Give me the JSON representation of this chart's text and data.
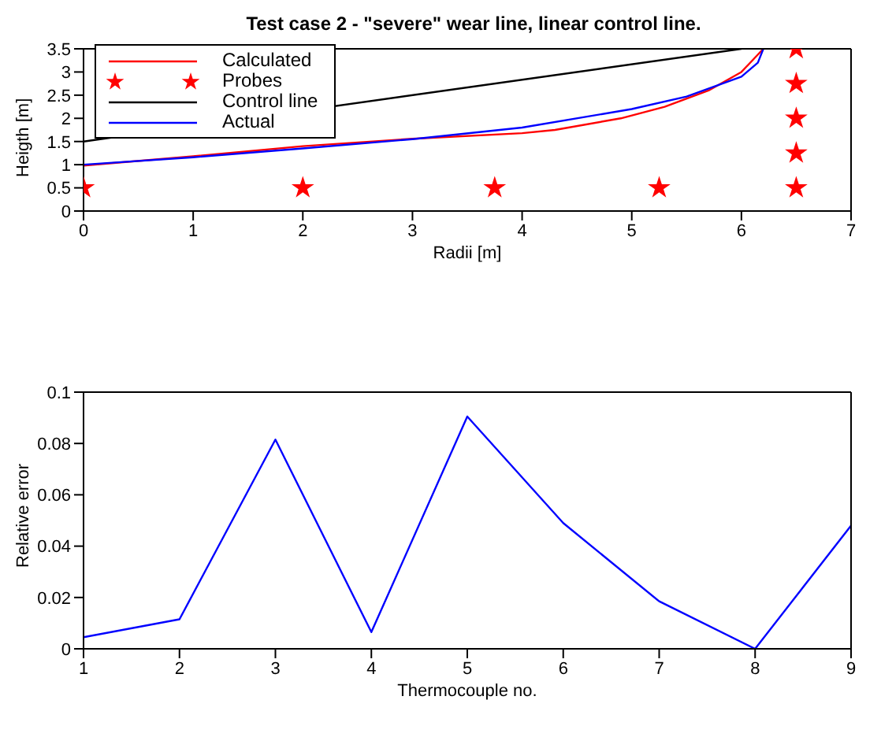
{
  "chart_data": [
    {
      "type": "line",
      "title": "Test case 2 - \"severe\" wear line, linear control line.",
      "xlabel": "Radii [m]",
      "ylabel": "Heigth [m]",
      "xlim": [
        0,
        7
      ],
      "xticks": [
        0,
        1,
        2,
        3,
        4,
        5,
        6,
        7
      ],
      "ylim": [
        0,
        3.5
      ],
      "yticks": [
        0,
        0.5,
        1,
        1.5,
        2,
        2.5,
        3,
        3.5
      ],
      "legend": "top left",
      "series": [
        {
          "name": "Calculated",
          "color": "#ff0000",
          "x": [
            0,
            1,
            2,
            3,
            4,
            4.3,
            4.9,
            5.3,
            5.7,
            6,
            6.1,
            6.2
          ],
          "values": [
            0.98,
            1.18,
            1.4,
            1.56,
            1.68,
            1.75,
            2.0,
            2.25,
            2.6,
            3.0,
            3.25,
            3.5
          ]
        },
        {
          "name": "Probes",
          "type": "scatter",
          "marker": "star",
          "color": "#ff0000",
          "x": [
            0,
            2,
            3.75,
            5.25,
            6.5,
            6.5,
            6.5,
            6.5,
            6.5
          ],
          "values": [
            0.5,
            0.5,
            0.5,
            0.5,
            0.5,
            1.25,
            2.0,
            2.75,
            3.5
          ]
        },
        {
          "name": "Control line",
          "color": "#000000",
          "x": [
            0,
            6
          ],
          "values": [
            1.5,
            3.5
          ]
        },
        {
          "name": "Actual",
          "color": "#0000ff",
          "x": [
            0,
            1,
            2,
            3,
            4,
            5,
            5.5,
            6,
            6.15,
            6.2
          ],
          "values": [
            1.0,
            1.16,
            1.35,
            1.55,
            1.8,
            2.2,
            2.47,
            2.9,
            3.2,
            3.5
          ]
        }
      ]
    },
    {
      "type": "line",
      "xlabel": "Thermocouple no.",
      "ylabel": "Relative error",
      "xlim": [
        1,
        9
      ],
      "xticks": [
        1,
        2,
        3,
        4,
        5,
        6,
        7,
        8,
        9
      ],
      "ylim": [
        0,
        0.1
      ],
      "yticks": [
        0,
        0.02,
        0.04,
        0.06,
        0.08,
        0.1
      ],
      "x": [
        1,
        2,
        3,
        4,
        5,
        6,
        7,
        8,
        9
      ],
      "series": [
        {
          "color": "#0000ff",
          "values": [
            0.0045,
            0.0115,
            0.0815,
            0.0065,
            0.0905,
            0.049,
            0.0185,
            0.0,
            0.048
          ]
        }
      ]
    }
  ]
}
